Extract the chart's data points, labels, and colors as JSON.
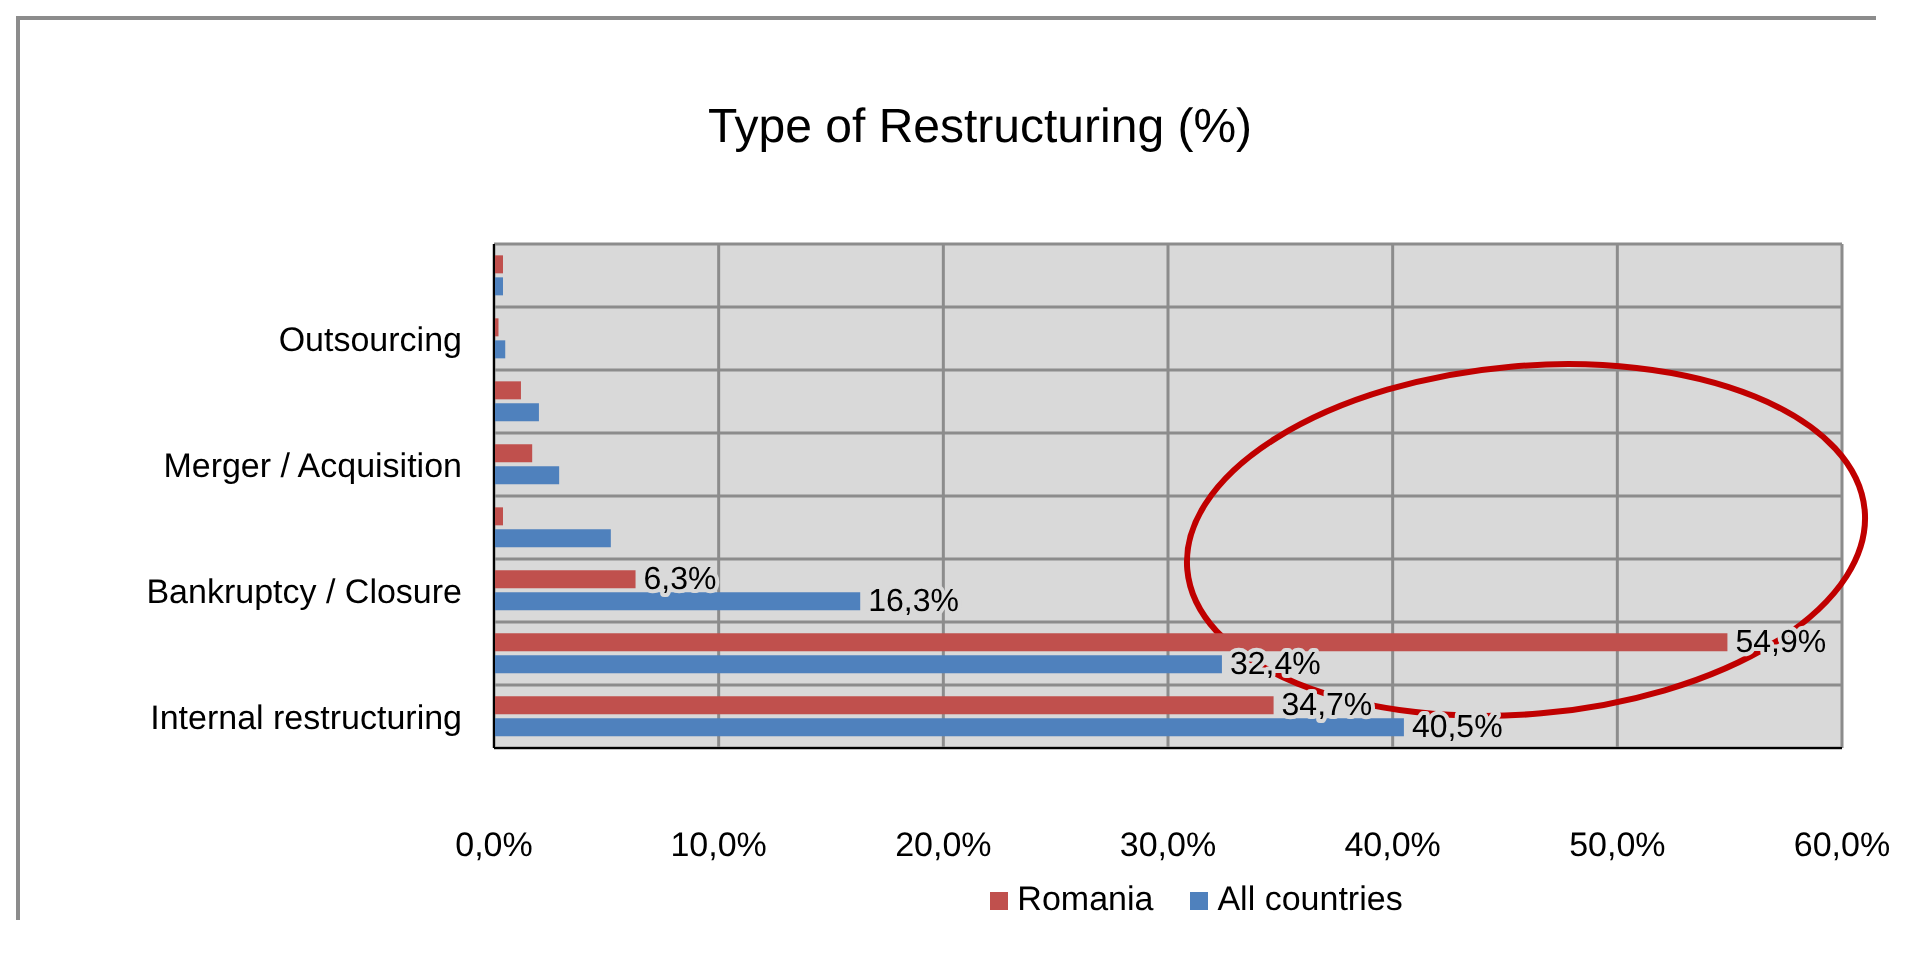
{
  "chart_data": {
    "type": "bar",
    "orientation": "horizontal",
    "title": "Type of Restructuring (%)",
    "categories": [
      null,
      "Outsourcing",
      null,
      "Merger / Acquisition",
      null,
      "Bankruptcy / Closure",
      null,
      "Internal restructuring"
    ],
    "series": [
      {
        "name": "Romania",
        "color": "#c0504d",
        "values": [
          0.4,
          0.2,
          1.2,
          1.7,
          0.4,
          6.3,
          54.9,
          34.7
        ],
        "value_labels": [
          null,
          null,
          null,
          null,
          null,
          "6,3%",
          "54,9%",
          "34,7%"
        ]
      },
      {
        "name": "All countries",
        "color": "#4f81bd",
        "values": [
          0.4,
          0.5,
          2.0,
          2.9,
          5.2,
          16.3,
          32.4,
          40.5
        ],
        "value_labels": [
          null,
          null,
          null,
          null,
          null,
          "16,3%",
          "32,4%",
          "40,5%"
        ]
      }
    ],
    "xlim": [
      0,
      60
    ],
    "xticks": [
      {
        "value": 0,
        "label": "0,0%"
      },
      {
        "value": 10,
        "label": "10,0%"
      },
      {
        "value": 20,
        "label": "20,0%"
      },
      {
        "value": 30,
        "label": "30,0%"
      },
      {
        "value": 40,
        "label": "40,0%"
      },
      {
        "value": 50,
        "label": "50,0%"
      },
      {
        "value": 60,
        "label": "60,0%"
      }
    ],
    "grid": true,
    "legend": "bottom"
  }
}
